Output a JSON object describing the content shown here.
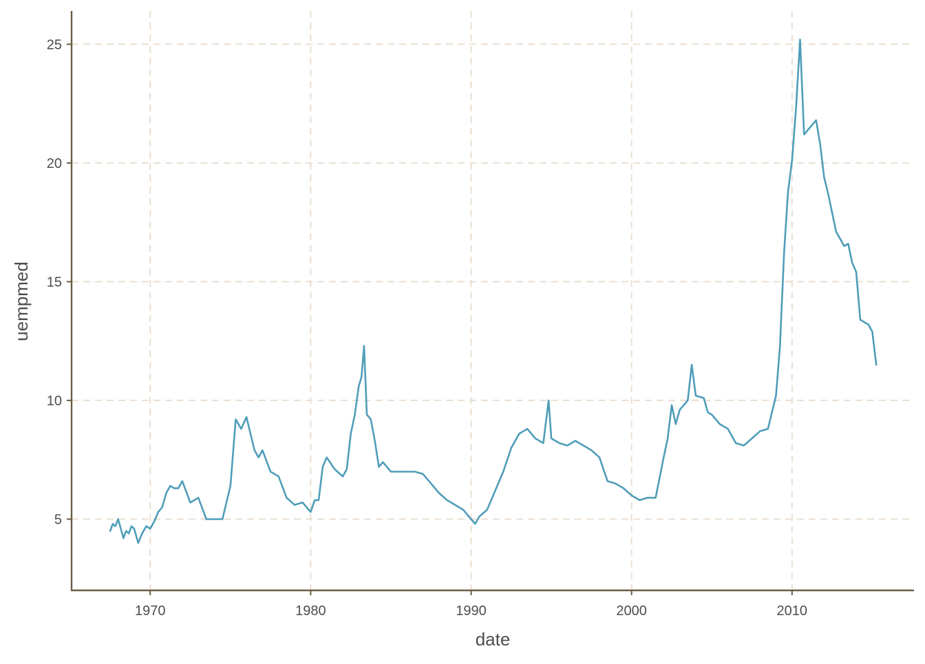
{
  "chart_data": {
    "type": "line",
    "xlabel": "date",
    "ylabel": "uempmed",
    "x_ticks": [
      1970,
      1980,
      1990,
      2000,
      2010
    ],
    "y_ticks": [
      5,
      10,
      15,
      20,
      25
    ],
    "xlim": [
      1965.1,
      2017.6
    ],
    "ylim": [
      2.0,
      26.4
    ],
    "grid": true,
    "legend": "none",
    "colors": {
      "line": "#4f9db8",
      "axis": "#6b5a45",
      "grid": "#eadfd0"
    },
    "series": [
      {
        "x": [
          1967.5,
          1967.67,
          1967.83,
          1968.0,
          1968.17,
          1968.33,
          1968.5,
          1968.67,
          1968.83,
          1969.0,
          1969.25,
          1969.5,
          1969.75,
          1970.0,
          1970.25,
          1970.5,
          1970.75,
          1971.0,
          1971.25,
          1971.5,
          1971.75,
          1972.0,
          1972.5,
          1973.0,
          1973.5,
          1974.0,
          1974.5,
          1975.0,
          1975.33,
          1975.67,
          1976.0,
          1976.5,
          1976.75,
          1977.0,
          1977.5,
          1978.0,
          1978.5,
          1979.0,
          1979.5,
          1980.0,
          1980.25,
          1980.5,
          1980.75,
          1981.0,
          1981.5,
          1982.0,
          1982.25,
          1982.5,
          1982.75,
          1983.0,
          1983.17,
          1983.33,
          1983.5,
          1983.75,
          1984.0,
          1984.25,
          1984.5,
          1985.0,
          1985.5,
          1986.0,
          1986.5,
          1987.0,
          1987.5,
          1988.0,
          1988.5,
          1989.0,
          1989.5,
          1990.0,
          1990.25,
          1990.5,
          1991.0,
          1991.5,
          1992.0,
          1992.5,
          1993.0,
          1993.5,
          1994.0,
          1994.5,
          1994.83,
          1995.0,
          1995.5,
          1996.0,
          1996.5,
          1997.0,
          1997.5,
          1998.0,
          1998.5,
          1999.0,
          1999.5,
          2000.0,
          2000.5,
          2001.0,
          2001.5,
          2002.0,
          2002.25,
          2002.5,
          2002.75,
          2003.0,
          2003.5,
          2003.75,
          2004.0,
          2004.5,
          2004.75,
          2005.0,
          2005.5,
          2006.0,
          2006.5,
          2007.0,
          2007.5,
          2008.0,
          2008.5,
          2009.0,
          2009.25,
          2009.5,
          2009.75,
          2010.0,
          2010.25,
          2010.5,
          2010.75,
          2011.0,
          2011.25,
          2011.5,
          2011.75,
          2012.0,
          2012.25,
          2012.5,
          2012.75,
          2013.0,
          2013.25,
          2013.5,
          2013.75,
          2014.0,
          2014.25,
          2014.5,
          2014.75,
          2015.0,
          2015.25
        ],
        "y": [
          4.5,
          4.8,
          4.7,
          5.0,
          4.6,
          4.2,
          4.5,
          4.4,
          4.7,
          4.6,
          4.0,
          4.4,
          4.7,
          4.6,
          4.9,
          5.3,
          5.5,
          6.1,
          6.4,
          6.3,
          6.3,
          6.6,
          5.7,
          5.9,
          5.0,
          5.0,
          5.0,
          6.4,
          9.2,
          8.8,
          9.3,
          7.9,
          7.6,
          7.9,
          7.0,
          6.8,
          5.9,
          5.6,
          5.7,
          5.3,
          5.8,
          5.8,
          7.2,
          7.6,
          7.1,
          6.8,
          7.1,
          8.6,
          9.4,
          10.6,
          11.0,
          12.3,
          9.4,
          9.2,
          8.3,
          7.2,
          7.4,
          7.0,
          7.0,
          7.0,
          7.0,
          6.9,
          6.5,
          6.1,
          5.8,
          5.6,
          5.4,
          5.0,
          4.8,
          5.1,
          5.4,
          6.2,
          7.0,
          8.0,
          8.6,
          8.8,
          8.4,
          8.2,
          10.0,
          8.4,
          8.2,
          8.1,
          8.3,
          8.1,
          7.9,
          7.6,
          6.6,
          6.5,
          6.3,
          6.0,
          5.8,
          5.9,
          5.9,
          7.6,
          8.4,
          9.8,
          9.0,
          9.6,
          10.0,
          11.5,
          10.2,
          10.1,
          9.5,
          9.4,
          9.0,
          8.8,
          8.2,
          8.1,
          8.4,
          8.7,
          8.8,
          10.2,
          12.3,
          16.2,
          18.8,
          20.1,
          22.3,
          25.2,
          21.2,
          21.4,
          21.6,
          21.8,
          20.8,
          19.4,
          18.7,
          17.9,
          17.1,
          16.8,
          16.5,
          16.6,
          15.8,
          15.4,
          13.4,
          13.3,
          13.2,
          12.9,
          11.5
        ]
      }
    ]
  }
}
